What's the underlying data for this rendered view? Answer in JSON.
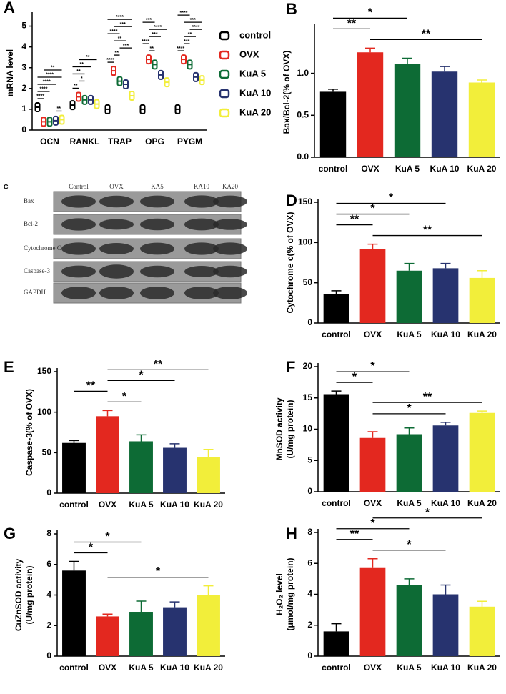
{
  "chart_data": [
    {
      "type": "dot",
      "panel": "A",
      "y_label": [
        "mRNA level"
      ],
      "categories": [
        "OCN",
        "RANKL",
        "TRAP",
        "OPG",
        "PYGM"
      ],
      "series": [
        {
          "name": "control",
          "color": "#000000",
          "values": [
            1.1,
            1.2,
            1.0,
            1.0,
            1.0
          ]
        },
        {
          "name": "OVX",
          "color": "#e3281f",
          "values": [
            0.4,
            1.6,
            2.85,
            3.4,
            3.4
          ]
        },
        {
          "name": "KuA 5",
          "color": "#0d6b35",
          "values": [
            0.4,
            1.45,
            2.35,
            3.15,
            3.15
          ]
        },
        {
          "name": "KuA 10",
          "color": "#27336f",
          "values": [
            0.45,
            1.45,
            2.2,
            2.65,
            2.55
          ]
        },
        {
          "name": "KuA 20",
          "color": "#f2ee3a",
          "values": [
            0.5,
            1.25,
            1.65,
            2.3,
            2.4
          ]
        }
      ],
      "ylim": [
        0,
        5.5
      ],
      "yticks": [
        0,
        1,
        2,
        3,
        4,
        5
      ],
      "brackets": [
        {
          "category": 0,
          "groups": [
            3,
            4
          ],
          "label": "**"
        },
        {
          "category": 0,
          "groups": [
            0,
            1
          ],
          "label": "****"
        },
        {
          "category": 0,
          "groups": [
            0,
            2
          ],
          "label": "****"
        },
        {
          "category": 0,
          "groups": [
            0,
            3
          ],
          "label": "****"
        },
        {
          "category": 0,
          "groups": [
            0,
            4
          ],
          "label": "****"
        },
        {
          "category": 0,
          "groups": [
            1,
            4
          ],
          "label": "**"
        },
        {
          "category": 1,
          "groups": [
            0,
            1
          ],
          "label": "**"
        },
        {
          "category": 1,
          "groups": [
            1,
            2
          ],
          "label": "*"
        },
        {
          "category": 1,
          "groups": [
            0,
            2
          ],
          "label": "**"
        },
        {
          "category": 1,
          "groups": [
            0,
            3
          ],
          "label": "**"
        },
        {
          "category": 1,
          "groups": [
            1,
            4
          ],
          "label": "**"
        },
        {
          "category": 2,
          "groups": [
            0,
            1
          ],
          "label": "****"
        },
        {
          "category": 2,
          "groups": [
            1,
            2
          ],
          "label": "**"
        },
        {
          "category": 2,
          "groups": [
            2,
            4
          ],
          "label": "***"
        },
        {
          "category": 2,
          "groups": [
            1,
            3
          ],
          "label": "**"
        },
        {
          "category": 2,
          "groups": [
            0,
            2
          ],
          "label": "****"
        },
        {
          "category": 2,
          "groups": [
            1,
            4
          ],
          "label": "***"
        },
        {
          "category": 2,
          "groups": [
            0,
            4
          ],
          "label": "****"
        },
        {
          "category": 3,
          "groups": [
            1,
            2
          ],
          "label": "**"
        },
        {
          "category": 3,
          "groups": [
            0,
            1
          ],
          "label": "****"
        },
        {
          "category": 3,
          "groups": [
            1,
            3
          ],
          "label": "***"
        },
        {
          "category": 3,
          "groups": [
            1,
            4
          ],
          "label": "****"
        },
        {
          "category": 3,
          "groups": [
            0,
            2
          ],
          "label": "***"
        },
        {
          "category": 4,
          "groups": [
            0,
            1
          ],
          "label": "****"
        },
        {
          "category": 4,
          "groups": [
            1,
            2
          ],
          "label": "***"
        },
        {
          "category": 4,
          "groups": [
            1,
            3
          ],
          "label": "**"
        },
        {
          "category": 4,
          "groups": [
            2,
            4
          ],
          "label": "****"
        },
        {
          "category": 4,
          "groups": [
            1,
            4
          ],
          "label": "***"
        },
        {
          "category": 4,
          "groups": [
            0,
            2
          ],
          "label": "****"
        }
      ]
    },
    {
      "type": "bar",
      "panel": "B",
      "y_label": [
        "Bax/Bcl-2(% of OVX)"
      ],
      "categories": [
        "control",
        "OVX",
        "KuA 5",
        "KuA 10",
        "KuA 20"
      ],
      "colors": [
        "#000000",
        "#e3281f",
        "#0d6b35",
        "#27336f",
        "#f2ee3a"
      ],
      "values": [
        0.78,
        1.25,
        1.11,
        1.02,
        0.89
      ],
      "errors": [
        0.03,
        0.05,
        0.07,
        0.06,
        0.03
      ],
      "ylim": [
        0,
        1.55
      ],
      "yticks": [
        {
          "value": 0,
          "label": "0.0"
        },
        0.5,
        {
          "value": 1,
          "label": "1.0"
        }
      ],
      "brackets": [
        {
          "groups": [
            1,
            4
          ],
          "label": "**"
        },
        {
          "groups": [
            0,
            1
          ],
          "label": "**"
        },
        {
          "groups": [
            0,
            2
          ],
          "label": "*"
        }
      ]
    },
    {
      "type": "bar",
      "panel": "D",
      "y_label": [
        "Cytochrome c(% of OVX)"
      ],
      "categories": [
        "control",
        "OVX",
        "KuA 5",
        "KuA 10",
        "KuA 20"
      ],
      "colors": [
        "#000000",
        "#e3281f",
        "#0d6b35",
        "#27336f",
        "#f2ee3a"
      ],
      "values": [
        36,
        92,
        65,
        68,
        56
      ],
      "errors": [
        4,
        6,
        9,
        6,
        9
      ],
      "ylim": [
        0,
        150
      ],
      "yticks": [
        0,
        50,
        100,
        150
      ],
      "brackets": [
        {
          "groups": [
            1,
            4
          ],
          "label": "**"
        },
        {
          "groups": [
            0,
            1
          ],
          "label": "**"
        },
        {
          "groups": [
            0,
            2
          ],
          "label": "*"
        },
        {
          "groups": [
            0,
            3
          ],
          "label": "*"
        }
      ]
    },
    {
      "type": "bar",
      "panel": "E",
      "y_label": [
        "Caspase-3(% of OVX)"
      ],
      "categories": [
        "control",
        "OVX",
        "KuA 5",
        "KuA 10",
        "KuA 20"
      ],
      "colors": [
        "#000000",
        "#e3281f",
        "#0d6b35",
        "#27336f",
        "#f2ee3a"
      ],
      "values": [
        62,
        95,
        64,
        56,
        45
      ],
      "errors": [
        3,
        7,
        8,
        5,
        9
      ],
      "ylim": [
        0,
        150
      ],
      "yticks": [
        0,
        50,
        100,
        150
      ],
      "brackets": [
        {
          "groups": [
            1,
            2
          ],
          "label": "*"
        },
        {
          "groups": [
            0,
            1
          ],
          "label": "**"
        },
        {
          "groups": [
            1,
            3
          ],
          "label": "*"
        },
        {
          "groups": [
            1,
            4
          ],
          "label": "**"
        }
      ]
    },
    {
      "type": "bar",
      "panel": "F",
      "y_label": [
        "MnSOD activity",
        "(U/mg protein)"
      ],
      "categories": [
        "control",
        "OVX",
        "KuA 5",
        "KuA 10",
        "KuA 20"
      ],
      "colors": [
        "#000000",
        "#e3281f",
        "#0d6b35",
        "#27336f",
        "#f2ee3a"
      ],
      "values": [
        15.6,
        8.6,
        9.2,
        10.6,
        12.6
      ],
      "errors": [
        0.5,
        1.0,
        1.0,
        0.5,
        0.3
      ],
      "ylim": [
        0,
        20
      ],
      "yticks": [
        0,
        5,
        10,
        15,
        20
      ],
      "brackets": [
        {
          "groups": [
            1,
            3
          ],
          "label": "*"
        },
        {
          "groups": [
            1,
            4
          ],
          "label": "**"
        },
        {
          "groups": [
            0,
            1
          ],
          "label": "*"
        },
        {
          "groups": [
            0,
            2
          ],
          "label": "*"
        }
      ]
    },
    {
      "type": "bar",
      "panel": "G",
      "y_label": [
        "CuZnSOD activity",
        "(U/mg protein)"
      ],
      "categories": [
        "control",
        "OVX",
        "KuA 5",
        "KuA 10",
        "KuA 20"
      ],
      "colors": [
        "#000000",
        "#e3281f",
        "#0d6b35",
        "#27336f",
        "#f2ee3a"
      ],
      "values": [
        5.6,
        2.6,
        2.9,
        3.2,
        4.0
      ],
      "errors": [
        0.6,
        0.15,
        0.7,
        0.35,
        0.6
      ],
      "ylim": [
        0,
        8
      ],
      "yticks": [
        0,
        2,
        4,
        6,
        8
      ],
      "brackets": [
        {
          "groups": [
            1,
            4
          ],
          "label": "*"
        },
        {
          "groups": [
            0,
            1
          ],
          "label": "*"
        },
        {
          "groups": [
            0,
            2
          ],
          "label": "*"
        }
      ]
    },
    {
      "type": "bar",
      "panel": "H",
      "y_label": [
        "H₂O₂ level",
        "(μmol/mg protein)"
      ],
      "categories": [
        "control",
        "OVX",
        "KuA 5",
        "KuA 10",
        "KuA 20"
      ],
      "colors": [
        "#000000",
        "#e3281f",
        "#0d6b35",
        "#27336f",
        "#f2ee3a"
      ],
      "values": [
        1.6,
        5.7,
        4.6,
        4.0,
        3.2
      ],
      "errors": [
        0.5,
        0.6,
        0.4,
        0.6,
        0.35
      ],
      "ylim": [
        0,
        8
      ],
      "yticks": [
        0,
        2,
        4,
        6,
        8
      ],
      "brackets": [
        {
          "groups": [
            1,
            3
          ],
          "label": "*"
        },
        {
          "groups": [
            0,
            1
          ],
          "label": "**"
        },
        {
          "groups": [
            0,
            2
          ],
          "label": "*"
        },
        {
          "groups": [
            1,
            4
          ],
          "label": "*"
        }
      ]
    }
  ],
  "blot": {
    "panel": "C",
    "lanes": [
      "Control",
      "OVX",
      "KA5",
      "KA10",
      "KA20"
    ],
    "rows": [
      "Bax",
      "Bcl-2",
      "Cytochrome C",
      "Caspase-3",
      "GAPDH"
    ]
  }
}
